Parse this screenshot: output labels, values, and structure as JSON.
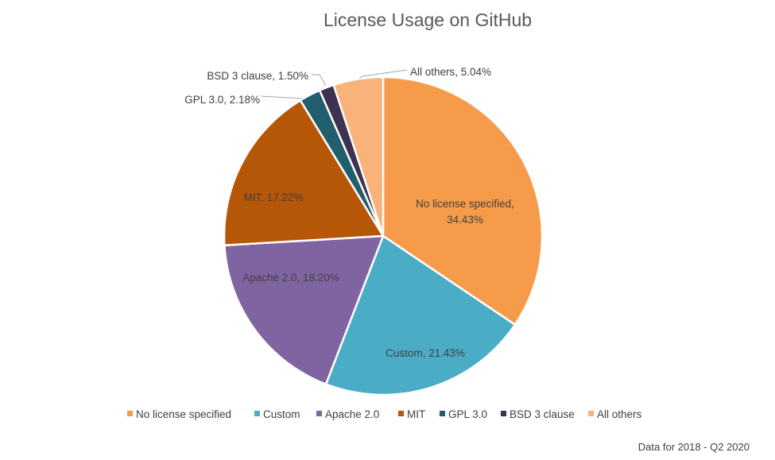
{
  "chart_data": {
    "type": "pie",
    "title": "License Usage on GitHub",
    "slices": [
      {
        "name": "No license specified",
        "value": 34.43,
        "label_lines": [
          "No license specified,",
          "34.43%"
        ],
        "color": "#F59B49"
      },
      {
        "name": "Custom",
        "value": 21.43,
        "label_lines": [
          "Custom, 21.43%"
        ],
        "color": "#4BACC6"
      },
      {
        "name": "Apache 2.0",
        "value": 18.2,
        "label_lines": [
          "Apache 2.0, 18.20%"
        ],
        "color": "#8064A2"
      },
      {
        "name": "MIT",
        "value": 17.22,
        "label_lines": [
          "MIT, 17.22%"
        ],
        "color": "#B65708"
      },
      {
        "name": "GPL 3.0",
        "value": 2.18,
        "label_lines": [
          "GPL 3.0, 2.18%"
        ],
        "color": "#215E6E"
      },
      {
        "name": "BSD 3 clause",
        "value": 1.5,
        "label_lines": [
          "BSD 3 clause, 1.50%"
        ],
        "color": "#3F3151"
      },
      {
        "name": "All others",
        "value": 5.04,
        "label_lines": [
          "All others, 5.04%"
        ],
        "color": "#F8B27A"
      }
    ],
    "legend_position": "bottom",
    "footnote": "Data for 2018 - Q2 2020"
  }
}
